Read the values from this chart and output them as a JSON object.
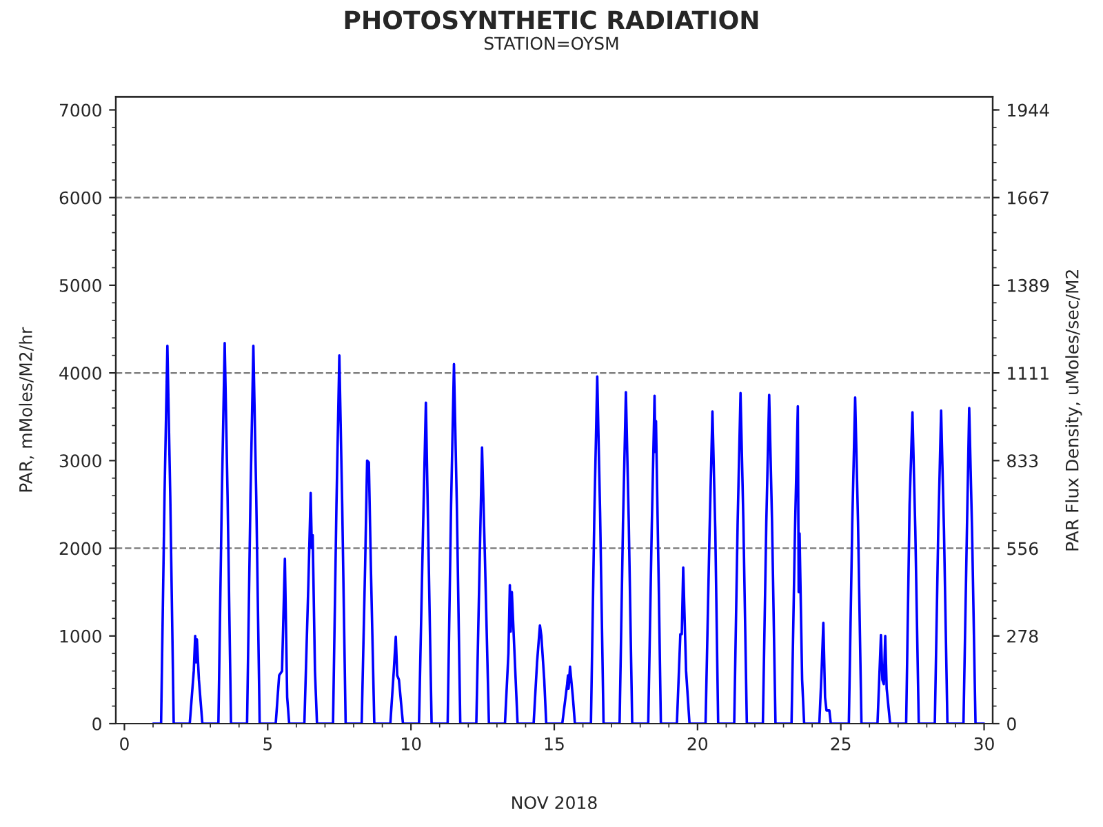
{
  "chart_data": {
    "type": "line",
    "title": "PHOTOSYNTHETIC RADIATION",
    "subtitle": "STATION=OYSM",
    "xlabel": "NOV 2018",
    "ylabel": "PAR, mMoles/M2/hr",
    "y2label": "PAR Flux Density, uMoles/sec/M2",
    "xlim": [
      -0.3,
      30.3
    ],
    "xticks": [
      0,
      5,
      10,
      15,
      20,
      25,
      30
    ],
    "ylim": [
      0,
      7150
    ],
    "yticks": [
      0,
      1000,
      2000,
      3000,
      4000,
      5000,
      6000,
      7000
    ],
    "y2lim": [
      0,
      1986.1
    ],
    "y2ticks": [
      0,
      {
        "value": 277.78,
        "label": "278"
      },
      {
        "value": 555.56,
        "label": "556"
      },
      {
        "value": 833.33,
        "label": "833"
      },
      {
        "value": 1111.11,
        "label": "1111"
      },
      {
        "value": 1388.89,
        "label": "1389"
      },
      {
        "value": 1666.67,
        "label": "1667"
      },
      {
        "value": 1944.44,
        "label": "1944"
      }
    ],
    "grid": false,
    "marker": "none",
    "line_style": "solid",
    "ref_lines": [
      {
        "axis": "y",
        "value": 2000,
        "label": null,
        "color": "#808080",
        "line_style": "dashed"
      },
      {
        "axis": "y",
        "value": 4000,
        "label": null,
        "color": "#808080",
        "line_style": "dashed"
      },
      {
        "axis": "y",
        "value": 6000,
        "label": null,
        "color": "#808080",
        "line_style": "dashed"
      }
    ],
    "series": [
      {
        "color": "#0000ff",
        "x": [
          1.0,
          1.28,
          1.4,
          1.5,
          1.6,
          1.72,
          2.28,
          2.42,
          2.47,
          2.5,
          2.53,
          2.6,
          2.72,
          3.28,
          3.4,
          3.5,
          3.6,
          3.72,
          4.28,
          4.4,
          4.5,
          4.6,
          4.72,
          5.28,
          5.4,
          5.5,
          5.6,
          5.68,
          5.75,
          6.28,
          6.42,
          6.5,
          6.54,
          6.57,
          6.65,
          6.72,
          7.28,
          7.4,
          7.5,
          7.6,
          7.72,
          8.28,
          8.4,
          8.47,
          8.53,
          8.6,
          8.72,
          9.28,
          9.4,
          9.47,
          9.52,
          9.58,
          9.72,
          10.28,
          10.42,
          10.52,
          10.6,
          10.72,
          11.28,
          11.4,
          11.5,
          11.6,
          11.72,
          12.28,
          12.4,
          12.48,
          12.58,
          12.72,
          13.28,
          13.4,
          13.45,
          13.48,
          13.52,
          13.6,
          13.72,
          14.28,
          14.4,
          14.5,
          14.55,
          14.65,
          14.72,
          15.28,
          15.45,
          15.48,
          15.5,
          15.55,
          15.65,
          15.72,
          16.28,
          16.4,
          16.5,
          16.6,
          16.72,
          17.28,
          17.4,
          17.5,
          17.6,
          17.72,
          18.28,
          18.4,
          18.5,
          18.53,
          18.55,
          18.65,
          18.72,
          19.28,
          19.4,
          19.45,
          19.5,
          19.6,
          19.72,
          20.28,
          20.42,
          20.52,
          20.62,
          20.72,
          21.28,
          21.4,
          21.5,
          21.6,
          21.72,
          22.28,
          22.4,
          22.5,
          22.6,
          22.72,
          23.28,
          23.4,
          23.5,
          23.53,
          23.56,
          23.65,
          23.72,
          24.25,
          24.33,
          24.39,
          24.45,
          24.5,
          24.6,
          24.65,
          25.28,
          25.4,
          25.5,
          25.6,
          25.72,
          26.28,
          26.4,
          26.45,
          26.5,
          26.55,
          26.6,
          26.72,
          27.28,
          27.4,
          27.5,
          27.6,
          27.72,
          28.28,
          28.4,
          28.5,
          28.6,
          28.72,
          29.28,
          29.4,
          29.48,
          29.58,
          29.7,
          30.0
        ],
        "values": [
          0,
          0,
          2600,
          4310,
          2600,
          0,
          0,
          600,
          1000,
          700,
          960,
          500,
          0,
          0,
          2600,
          4340,
          2600,
          0,
          0,
          2600,
          4310,
          2600,
          0,
          0,
          550,
          600,
          1880,
          300,
          0,
          0,
          1600,
          2630,
          2000,
          2150,
          600,
          0,
          0,
          2500,
          4200,
          2500,
          0,
          0,
          1800,
          3000,
          2980,
          1800,
          0,
          0,
          600,
          990,
          550,
          500,
          0,
          0,
          2200,
          3660,
          2200,
          0,
          0,
          2500,
          4100,
          2500,
          0,
          0,
          1900,
          3150,
          1900,
          0,
          0,
          800,
          1580,
          1050,
          1500,
          900,
          0,
          0,
          700,
          1120,
          1000,
          500,
          0,
          0,
          450,
          550,
          400,
          650,
          300,
          0,
          0,
          2400,
          3960,
          2400,
          0,
          0,
          2300,
          3780,
          2300,
          0,
          0,
          2200,
          3740,
          3100,
          3450,
          1500,
          0,
          0,
          1020,
          1020,
          1780,
          600,
          0,
          0,
          2200,
          3560,
          2200,
          0,
          0,
          2300,
          3770,
          2300,
          0,
          0,
          2300,
          3750,
          2300,
          0,
          0,
          2200,
          3620,
          1500,
          2170,
          500,
          0,
          0,
          600,
          1150,
          300,
          150,
          150,
          0,
          0,
          2300,
          3720,
          2300,
          0,
          0,
          1010,
          500,
          450,
          1000,
          400,
          0,
          0,
          2500,
          3550,
          2200,
          0,
          0,
          2200,
          3570,
          2200,
          0,
          0,
          2200,
          3600,
          2200,
          0,
          0
        ]
      }
    ]
  }
}
